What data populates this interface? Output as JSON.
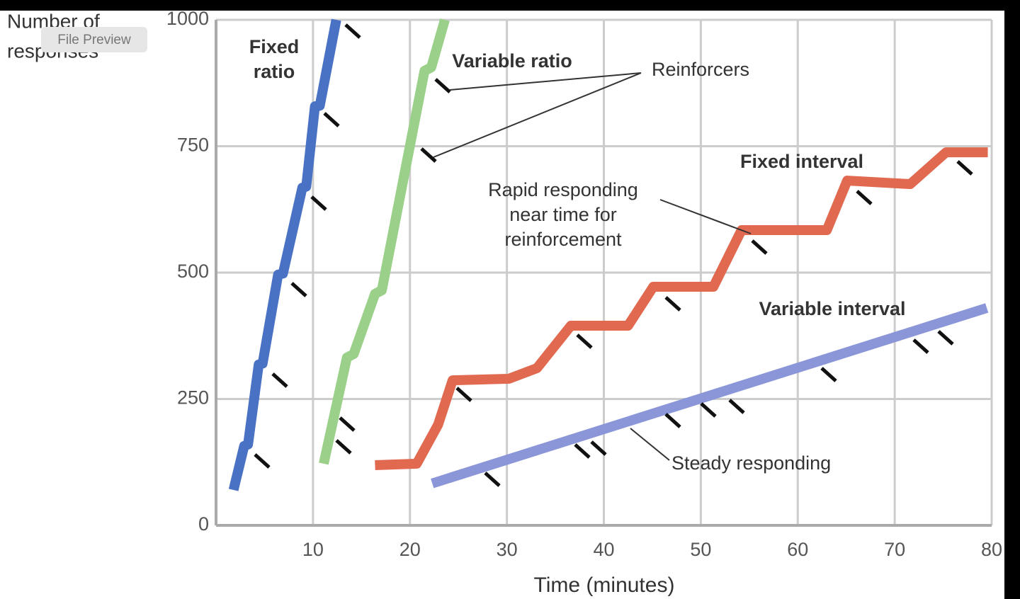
{
  "chart_data": {
    "type": "line",
    "ylabel_lines": [
      "Number of",
      "responses"
    ],
    "xlabel": "Time (minutes)",
    "xlim": [
      0,
      80
    ],
    "xticks": [
      10,
      20,
      30,
      40,
      50,
      60,
      70,
      80
    ],
    "ylim": [
      0,
      1000
    ],
    "yticks": [
      0,
      250,
      500,
      750,
      1000
    ],
    "grid": true,
    "series": [
      {
        "name": "Fixed ratio",
        "color": "#4a72c4",
        "x": [
          1.8,
          2.9,
          3.3,
          4.4,
          4.8,
          6.4,
          6.9,
          8.9,
          9.3,
          10.2,
          10.7,
          12.4
        ],
        "values": [
          70,
          157,
          160,
          318,
          320,
          496,
          498,
          668,
          670,
          829,
          830,
          1000
        ]
      },
      {
        "name": "Variable ratio",
        "color": "#9bd08a",
        "x": [
          11.1,
          13.5,
          14.2,
          16.4,
          17.1,
          21.5,
          22.2,
          23.6
        ],
        "values": [
          122,
          332,
          339,
          458,
          465,
          899,
          906,
          1000
        ]
      },
      {
        "name": "Fixed interval",
        "color": "#e0694f",
        "x": [
          16.4,
          20.7,
          22.9,
          24.4,
          30.2,
          33.1,
          36.6,
          42.5,
          45.1,
          51.3,
          54.2,
          63.0,
          65.1,
          71.6,
          75.3,
          79.6
        ],
        "values": [
          119,
          122,
          199,
          287,
          290,
          311,
          395,
          395,
          472,
          472,
          584,
          584,
          682,
          675,
          738,
          738
        ]
      },
      {
        "name": "Variable interval",
        "color": "#8a96d8",
        "x": [
          22.3,
          79.5
        ],
        "values": [
          83,
          430
        ]
      }
    ],
    "annotations": [
      {
        "lines": [
          "Reinforcers"
        ]
      },
      {
        "lines": [
          "Rapid responding",
          "near time for",
          "reinforcement"
        ]
      },
      {
        "lines": [
          "Steady responding"
        ]
      }
    ]
  },
  "tooltip": "File Preview"
}
